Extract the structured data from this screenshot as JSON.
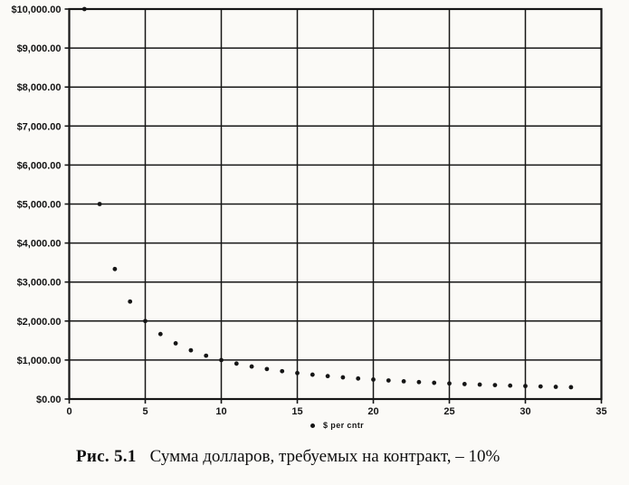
{
  "page": {
    "paper_color": "#fbfaf7",
    "ink_color": "#161616"
  },
  "chart_data": {
    "type": "scatter",
    "title": "",
    "xlabel": "",
    "ylabel": "",
    "xlim": [
      0,
      35
    ],
    "ylim": [
      0,
      10000
    ],
    "grid": true,
    "xticks": [
      0,
      5,
      10,
      15,
      20,
      25,
      30,
      35
    ],
    "yticks": [
      0,
      1000,
      2000,
      3000,
      4000,
      5000,
      6000,
      7000,
      8000,
      9000,
      10000
    ],
    "ytick_labels": [
      "$0.00",
      "$1,000.00",
      "$2,000.00",
      "$3,000.00",
      "$4,000.00",
      "$5,000.00",
      "$6,000.00",
      "$7,000.00",
      "$8,000.00",
      "$9,000.00",
      "$10,000.00"
    ],
    "legend": {
      "label": "$ per cntr",
      "marker": "dot",
      "position": "bottom-center"
    },
    "series": [
      {
        "name": "$ per cntr",
        "marker": "dot",
        "x": [
          1,
          2,
          3,
          4,
          5,
          6,
          7,
          8,
          9,
          10,
          11,
          12,
          13,
          14,
          15,
          16,
          17,
          18,
          19,
          20,
          21,
          22,
          23,
          24,
          25,
          26,
          27,
          28,
          29,
          30,
          31,
          32,
          33
        ],
        "y": [
          10000,
          5000,
          3333.33,
          2500,
          2000,
          1666.67,
          1428.57,
          1250,
          1111.11,
          1000,
          909.09,
          833.33,
          769.23,
          714.29,
          666.67,
          625,
          588.24,
          555.56,
          526.32,
          500,
          476.19,
          454.55,
          434.78,
          416.67,
          400,
          384.62,
          370.37,
          357.14,
          344.83,
          333.33,
          322.58,
          312.5,
          303.03
        ]
      }
    ]
  },
  "caption": {
    "label": "Рис. 5.1",
    "text": "Сумма долларов, требуемых на контракт, – 10%"
  }
}
